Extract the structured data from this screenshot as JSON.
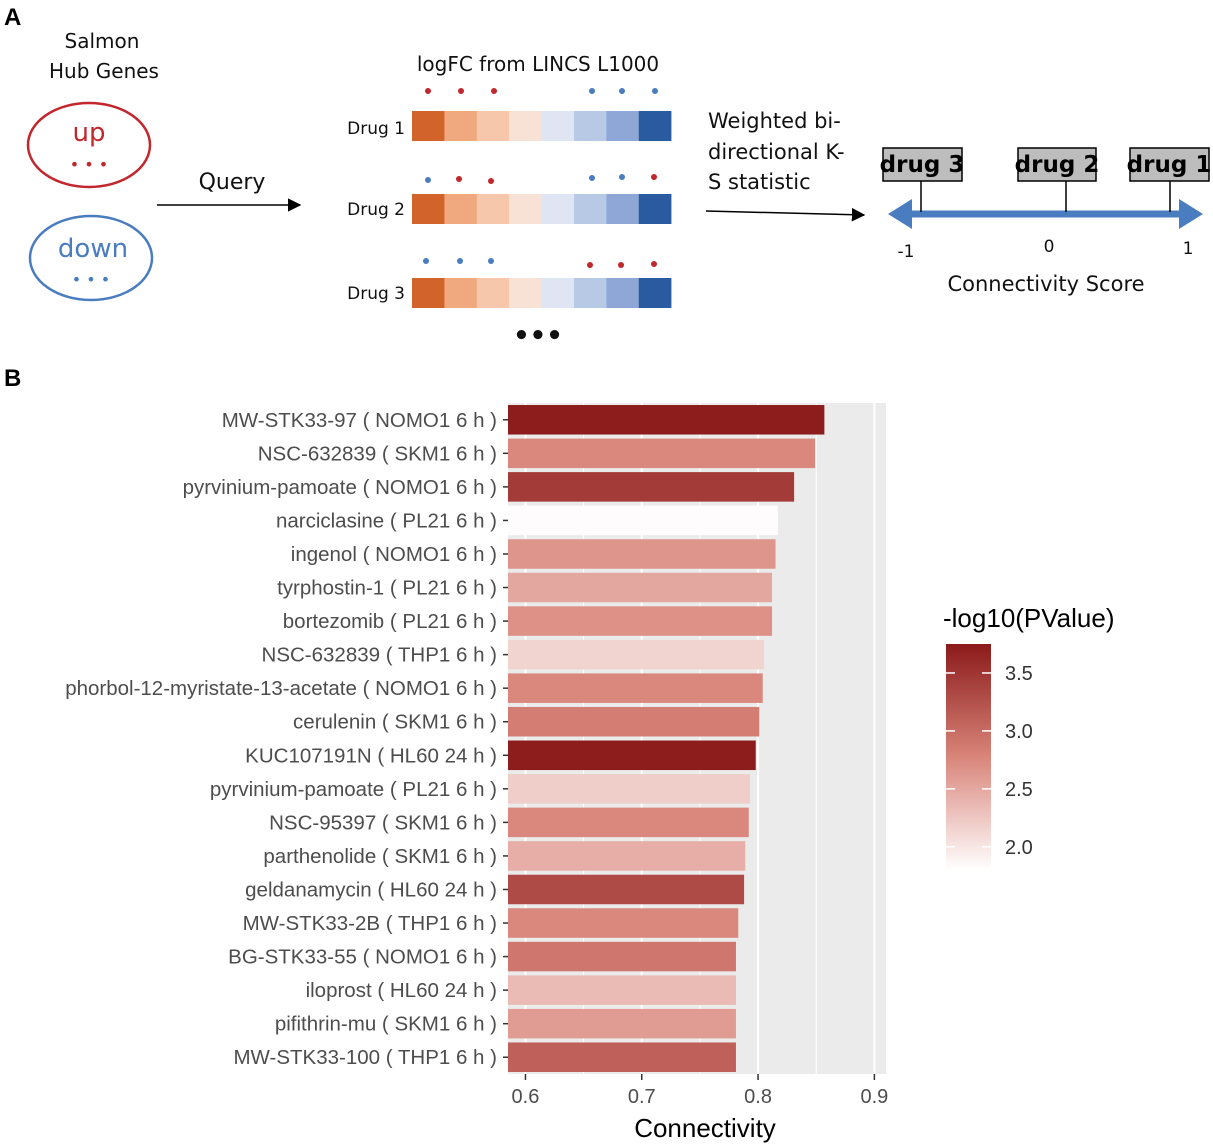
{
  "panel_a": {
    "label": "A",
    "hub_title_line1": "Salmon",
    "hub_title_line2": "Hub Genes",
    "up_label": "up",
    "down_label": "down",
    "dots": "• • •",
    "query_label": "Query",
    "logfc_title": "logFC from LINCS L1000",
    "drugs": [
      "Drug 1",
      "Drug 2",
      "Drug 3"
    ],
    "more": "•••",
    "ks_line1": "Weighted bi-",
    "ks_line2": "directional K-",
    "ks_line3": "S statistic",
    "score_drugs": [
      "drug 3",
      "drug 2",
      "drug 1"
    ],
    "score_ticks": [
      "-1",
      "0",
      "1"
    ],
    "score_title": "Connectivity Score",
    "heat_colors": [
      "#d2632a",
      "#f0a97f",
      "#f6c7aa",
      "#f8e2d6",
      "#dfe5f2",
      "#b8c9e6",
      "#8ea7d6",
      "#2a5aa0"
    ],
    "colors": {
      "up": "#c1272d",
      "down": "#4a7cc0",
      "arrow": "#4a7cc0"
    }
  },
  "panel_b": {
    "label": "B"
  },
  "chart_data": {
    "type": "bar",
    "orientation": "horizontal",
    "xlabel": "Connectivity",
    "ylabel": "",
    "xlim": [
      0.585,
      0.91
    ],
    "xticks": [
      0.6,
      0.7,
      0.8,
      0.9
    ],
    "xtick_labels": [
      "0.6",
      "0.7",
      "0.8",
      "0.9"
    ],
    "categories": [
      "MW-STK33-97 ( NOMO1 6 h )",
      "NSC-632839 ( SKM1 6 h )",
      "pyrvinium-pamoate ( NOMO1 6 h )",
      "narciclasine ( PL21 6 h )",
      "ingenol ( NOMO1 6 h )",
      "tyrphostin-1 ( PL21 6 h )",
      "bortezomib ( PL21 6 h )",
      "NSC-632839 ( THP1 6 h )",
      "phorbol-12-myristate-13-acetate ( NOMO1 6 h )",
      "cerulenin ( SKM1 6 h )",
      "KUC107191N ( HL60 24 h )",
      "pyrvinium-pamoate ( PL21 6 h )",
      "NSC-95397 ( SKM1 6 h )",
      "parthenolide ( SKM1 6 h )",
      "geldanamycin ( HL60 24 h )",
      "MW-STK33-2B ( THP1 6 h )",
      "BG-STK33-55 ( NOMO1 6 h )",
      "iloprost ( HL60 24 h )",
      "pifithrin-mu ( SKM1 6 h )",
      "MW-STK33-100 ( THP1 6 h )"
    ],
    "values": [
      0.857,
      0.849,
      0.831,
      0.817,
      0.815,
      0.812,
      0.812,
      0.805,
      0.804,
      0.801,
      0.798,
      0.793,
      0.792,
      0.789,
      0.788,
      0.783,
      0.781,
      0.781,
      0.781,
      0.781
    ],
    "color_values": [
      3.72,
      2.75,
      3.45,
      1.82,
      2.65,
      2.5,
      2.68,
      2.15,
      2.75,
      2.85,
      3.72,
      2.2,
      2.75,
      2.45,
      3.3,
      2.75,
      2.9,
      2.35,
      2.6,
      3.1
    ],
    "legend": {
      "title": "-log10(PValue)",
      "ticks": [
        2.0,
        2.5,
        3.0,
        3.5
      ],
      "tick_labels": [
        "2.0",
        "2.5",
        "3.0",
        "3.5"
      ],
      "range": [
        1.8,
        3.75
      ],
      "low_color": "#ffffff",
      "high_color": "#8b1a1a"
    },
    "panel_background": "#ebebeb",
    "grid": true
  }
}
